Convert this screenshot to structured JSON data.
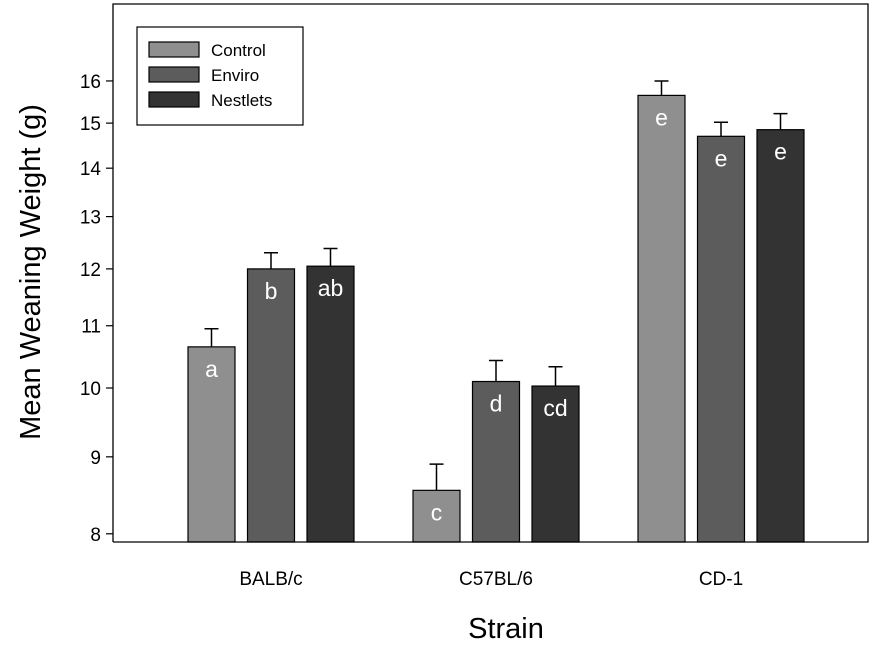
{
  "chart_data": {
    "type": "bar",
    "title": "",
    "xlabel": "Strain",
    "ylabel": "Mean Weaning Weight (g)",
    "y_scale": "log",
    "ylim": [
      7.9,
      18.0
    ],
    "yticks": [
      8,
      9,
      10,
      11,
      12,
      13,
      14,
      15,
      16
    ],
    "categories": [
      "BALB/c",
      "C57BL/6",
      "CD-1"
    ],
    "legend_position": "top-left",
    "grid": false,
    "series": [
      {
        "name": "Control",
        "color": "#8f8f8f",
        "values": [
          10.65,
          8.55,
          15.65
        ],
        "errors": [
          0.3,
          0.35,
          0.35
        ],
        "labels": [
          "a",
          "c",
          "e"
        ]
      },
      {
        "name": "Enviro",
        "color": "#5c5c5c",
        "values": [
          12.0,
          10.1,
          14.7
        ],
        "errors": [
          0.3,
          0.33,
          0.32
        ],
        "labels": [
          "b",
          "d",
          "e"
        ]
      },
      {
        "name": "Nestlets",
        "color": "#333333",
        "values": [
          12.05,
          10.03,
          14.85
        ],
        "errors": [
          0.33,
          0.3,
          0.37
        ],
        "labels": [
          "ab",
          "cd",
          "e"
        ]
      }
    ]
  }
}
